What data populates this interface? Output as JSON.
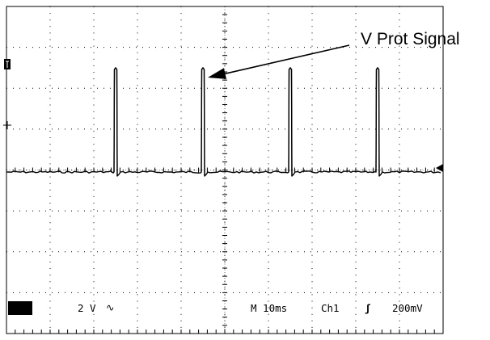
{
  "chart_data": {
    "type": "line",
    "x_unit": "ms",
    "y_unit": "V",
    "xlim": [
      0,
      50
    ],
    "ylim": [
      -8,
      8
    ],
    "time_per_div_ms": 10,
    "volts_per_div": 2,
    "grid": true,
    "series": [
      {
        "name": "Ch1",
        "baseline_v": -0.1,
        "pulses": [
          {
            "t": 12.5,
            "peak_v": 5.0
          },
          {
            "t": 22.5,
            "peak_v": 5.0
          },
          {
            "t": 32.5,
            "peak_v": 5.0
          },
          {
            "t": 42.5,
            "peak_v": 5.0
          }
        ]
      }
    ],
    "annotation": {
      "text": "V Prot Signal",
      "pulse_index": 1
    },
    "readout": {
      "channel": "Ch1",
      "scale": "2 V",
      "coupling_symbol": "∿",
      "timebase": "M  10ms",
      "trigger_source": "Ch1",
      "trigger_slope_symbol": "ʃ",
      "trigger_level": "200mV"
    }
  }
}
